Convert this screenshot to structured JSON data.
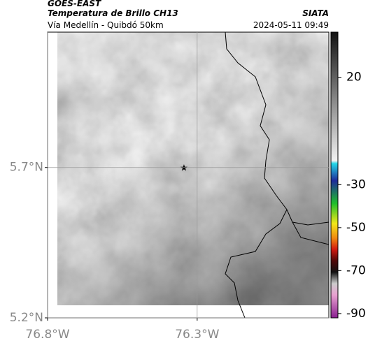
{
  "header": {
    "source": "GOES-EAST",
    "title": "Temperatura de Brillo CH13",
    "agency": "SIATA",
    "subtitle": "Vía Medellín - Quibdó 50km",
    "datetime": "2024-05-11 09:49"
  },
  "map": {
    "xlim": [
      -76.8,
      -75.86
    ],
    "ylim": [
      5.2,
      6.15
    ],
    "xticks": [
      {
        "value": -76.8,
        "label": "76.8°W"
      },
      {
        "value": -76.3,
        "label": "76.3°W"
      }
    ],
    "yticks": [
      {
        "value": 5.2,
        "label": "5.2°N"
      },
      {
        "value": 5.7,
        "label": "5.7°N"
      }
    ],
    "grid": true
  },
  "colorbar": {
    "lim": [
      -92,
      41
    ],
    "ticks": [
      20,
      -30,
      -50,
      -70,
      -90
    ]
  }
}
